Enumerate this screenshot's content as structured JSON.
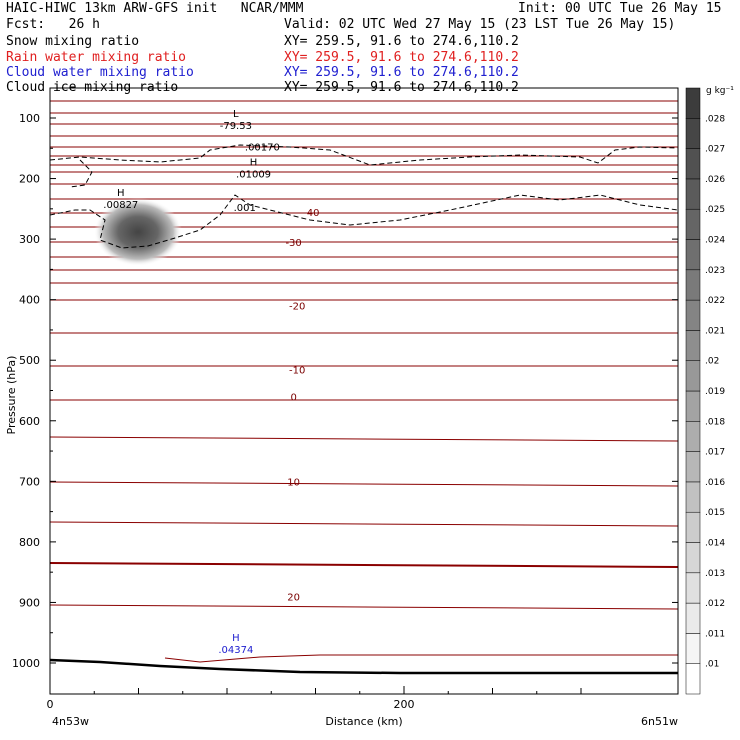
{
  "header": {
    "title": "HAIC-HIWC 13km ARW-GFS init   NCAR/MMM",
    "init": "Init: 00 UTC Tue 26 May 15",
    "fcst": "Fcst:   26 h",
    "valid": "Valid: 02 UTC Wed 27 May 15 (23 LST Tue 26 May 15)",
    "fields": [
      {
        "name": "Snow mixing ratio",
        "xy": "XY= 259.5, 91.6 to 274.6,110.2",
        "color": "#000000"
      },
      {
        "name": "Rain water mixing ratio",
        "xy": "XY= 259.5, 91.6 to 274.6,110.2",
        "color": "#e02020"
      },
      {
        "name": "Cloud water mixing ratio",
        "xy": "XY= 259.5, 91.6 to 274.6,110.2",
        "color": "#2020d0"
      },
      {
        "name": "Cloud ice mixing ratio",
        "xy": "XY= 259.5, 91.6 to 274.6,110.2",
        "color": "#000000"
      }
    ]
  },
  "chart_data": {
    "type": "contour cross-section",
    "xlabel": "Distance (km)",
    "ylabel": "Pressure (hPa)",
    "x_ticks": [
      "0",
      "200"
    ],
    "x_tick_values": [
      0,
      200
    ],
    "x_left_label": "4n53w",
    "x_right_label": "6n51w",
    "xlim": [
      0,
      310
    ],
    "y_ticks": [
      "100",
      "200",
      "300",
      "400",
      "500",
      "600",
      "700",
      "800",
      "900",
      "1000"
    ],
    "y_tick_values": [
      100,
      200,
      300,
      400,
      500,
      600,
      700,
      800,
      900,
      1000
    ],
    "ylim": [
      1050,
      65
    ],
    "temperature_contour_labels": [
      {
        "text": "-40",
        "x": 142,
        "p": 255
      },
      {
        "text": "-30",
        "x": 132,
        "p": 305
      },
      {
        "text": "-20",
        "x": 134,
        "p": 410
      },
      {
        "text": "-10",
        "x": 134,
        "p": 515
      },
      {
        "text": "0",
        "x": 132,
        "p": 560
      },
      {
        "text": "10",
        "x": 132,
        "p": 700
      },
      {
        "text": "20",
        "x": 132,
        "p": 890
      }
    ],
    "temperature_isotherm_count": 22,
    "extrema": [
      {
        "kind": "L",
        "value": "-79.53",
        "x": 105,
        "p": 115,
        "color": "#7a0000"
      },
      {
        "kind": "",
        "value": ".00170",
        "x": 120,
        "p": 150,
        "color": "#000000"
      },
      {
        "kind": "H",
        "value": ".01009",
        "x": 115,
        "p": 195,
        "color": "#000000"
      },
      {
        "kind": "H",
        "value": ".00827",
        "x": 40,
        "p": 245,
        "color": "#000000"
      },
      {
        "kind": "",
        "value": ".001",
        "x": 110,
        "p": 250,
        "color": "#000000"
      },
      {
        "kind": "H",
        "value": ".04374",
        "x": 105,
        "p": 980,
        "color": "#2020d0"
      }
    ],
    "colorbar": {
      "unit": "g kg⁻¹",
      "levels": [
        ".01",
        ".011",
        ".012",
        ".013",
        ".014",
        ".015",
        ".016",
        ".017",
        ".018",
        ".019",
        ".02",
        ".021",
        ".022",
        ".023",
        ".024",
        ".025",
        ".026",
        ".027",
        ".028"
      ]
    }
  }
}
